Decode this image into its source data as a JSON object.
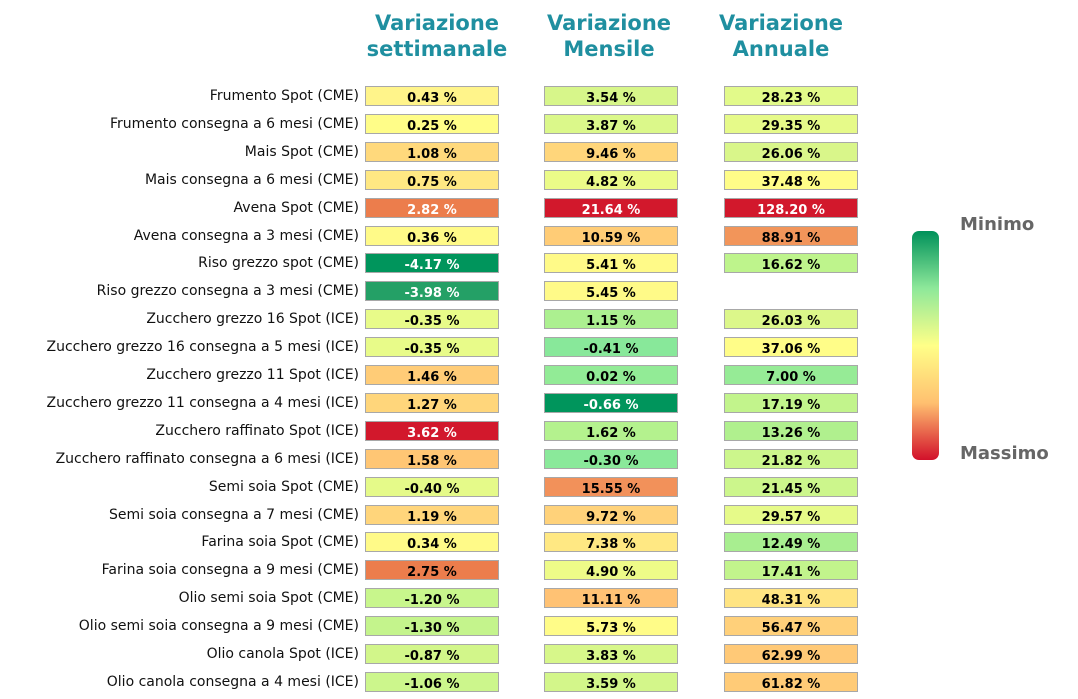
{
  "chart_data": {
    "type": "table",
    "columns": [
      "Variazione settimanale",
      "Variazione Mensile",
      "Variazione Annuale"
    ],
    "rows": [
      {
        "label": "Frumento Spot (CME)",
        "values": [
          "0.43 %",
          "3.54 %",
          "28.23 %"
        ],
        "colors": [
          "#fff48a",
          "#d7f68a",
          "#e2fa8a"
        ]
      },
      {
        "label": "Frumento consegna a 6 mesi (CME)",
        "values": [
          "0.25 %",
          "3.87 %",
          "29.35 %"
        ],
        "colors": [
          "#fffd88",
          "#dbf88a",
          "#e6fa89"
        ]
      },
      {
        "label": "Mais Spot (CME)",
        "values": [
          "1.08 %",
          "9.46 %",
          "26.06 %"
        ],
        "colors": [
          "#ffd97c",
          "#ffd67b",
          "#d9f68a"
        ]
      },
      {
        "label": "Mais consegna a 6 mesi (CME)",
        "values": [
          "0.75 %",
          "4.82 %",
          "37.48 %"
        ],
        "colors": [
          "#ffe883",
          "#ebfb88",
          "#fffd88"
        ]
      },
      {
        "label": "Avena Spot (CME)",
        "values": [
          "2.82 %",
          "21.64 %",
          "128.20 %"
        ],
        "colors": [
          "#ec7d4c",
          "#d2182c",
          "#d2182c"
        ]
      },
      {
        "label": "Avena consegna a 3 mesi (CME)",
        "values": [
          "0.36 %",
          "10.59 %",
          "88.91 %"
        ],
        "colors": [
          "#fffa88",
          "#ffcc76",
          "#f2955a"
        ]
      },
      {
        "label": "Riso grezzo spot (CME)",
        "values": [
          "-4.17 %",
          "5.41 %",
          "16.62 %"
        ],
        "colors": [
          "#00955c",
          "#fffa88",
          "#bef48c"
        ]
      },
      {
        "label": "Riso grezzo consegna a 3 mesi (CME)",
        "values": [
          "-3.98 %",
          "5.45 %",
          null
        ],
        "colors": [
          "#24a066",
          "#fffa88",
          null
        ]
      },
      {
        "label": "Zucchero grezzo 16 Spot (ICE)",
        "values": [
          "-0.35 %",
          "1.15 %",
          "26.03 %"
        ],
        "colors": [
          "#e8fb89",
          "#acf090",
          "#dcf78a"
        ]
      },
      {
        "label": "Zucchero grezzo 16 consegna a 5 mesi (ICE)",
        "values": [
          "-0.35 %",
          "-0.41 %",
          "37.06 %"
        ],
        "colors": [
          "#e8fb89",
          "#88e89a",
          "#fffd88"
        ]
      },
      {
        "label": "Zucchero grezzo 11 Spot (ICE)",
        "values": [
          "1.46 %",
          "0.02 %",
          "7.00 %"
        ],
        "colors": [
          "#ffcc77",
          "#92eb96",
          "#96eb96"
        ]
      },
      {
        "label": "Zucchero grezzo 11 consegna a 4 mesi (ICE)",
        "values": [
          "1.27 %",
          "-0.66 %",
          "17.19 %"
        ],
        "colors": [
          "#ffd67b",
          "#00955c",
          "#c2f48c"
        ]
      },
      {
        "label": "Zucchero raffinato Spot (ICE)",
        "values": [
          "3.62 %",
          "1.62 %",
          "13.26 %"
        ],
        "colors": [
          "#d2182c",
          "#b4f28e",
          "#b0f08e"
        ]
      },
      {
        "label": "Zucchero raffinato consegna a 6 mesi (ICE)",
        "values": [
          "1.58 %",
          "-0.30 %",
          "21.82 %"
        ],
        "colors": [
          "#ffc674",
          "#8ae99a",
          "#ccf68c"
        ]
      },
      {
        "label": "Semi soia Spot (CME)",
        "values": [
          "-0.40 %",
          "15.55 %",
          "21.45 %"
        ],
        "colors": [
          "#e5fa89",
          "#f2915a",
          "#ccf68c"
        ]
      },
      {
        "label": "Semi soia consegna a 7 mesi (CME)",
        "values": [
          "1.19 %",
          "9.72 %",
          "29.57 %"
        ],
        "colors": [
          "#ffd57b",
          "#ffd27a",
          "#e6fa89"
        ]
      },
      {
        "label": "Farina soia Spot (CME)",
        "values": [
          "0.34 %",
          "7.38 %",
          "12.49 %"
        ],
        "colors": [
          "#fffa88",
          "#ffe883",
          "#a8ee90"
        ]
      },
      {
        "label": "Farina soia consegna a 9 mesi (CME)",
        "values": [
          "2.75 %",
          "4.90 %",
          "17.41 %"
        ],
        "colors": [
          "#ec7d4c",
          "#eefb88",
          "#c2f48c"
        ]
      },
      {
        "label": "Olio semi soia Spot (CME)",
        "values": [
          "-1.20 %",
          "11.11 %",
          "48.31 %"
        ],
        "colors": [
          "#c8f68c",
          "#ffc274",
          "#ffe482"
        ]
      },
      {
        "label": "Olio semi soia consegna a 9 mesi (CME)",
        "values": [
          "-1.30 %",
          "5.73 %",
          "56.47 %"
        ],
        "colors": [
          "#c4f48c",
          "#fffc88",
          "#ffd07a"
        ]
      },
      {
        "label": "Olio canola Spot (ICE)",
        "values": [
          "-0.87 %",
          "3.83 %",
          "62.99 %"
        ],
        "colors": [
          "#d2f68a",
          "#d7f78a",
          "#ffc977"
        ]
      },
      {
        "label": "Olio canola consegna a 4 mesi (ICE)",
        "values": [
          "-1.06 %",
          "3.59 %",
          "61.82 %"
        ],
        "colors": [
          "#ccf68c",
          "#d3f68a",
          "#ffcb77"
        ]
      }
    ],
    "white_text_cells": [
      [
        4,
        0
      ],
      [
        4,
        1
      ],
      [
        4,
        2
      ],
      [
        6,
        0
      ],
      [
        7,
        0
      ],
      [
        11,
        1
      ],
      [
        12,
        0
      ]
    ],
    "legend": {
      "top_label": "Minimo",
      "bottom_label": "Massimo",
      "colors": [
        "#00915a",
        "#8ee89a",
        "#ffff88",
        "#ffc070",
        "#d2102a"
      ]
    }
  }
}
